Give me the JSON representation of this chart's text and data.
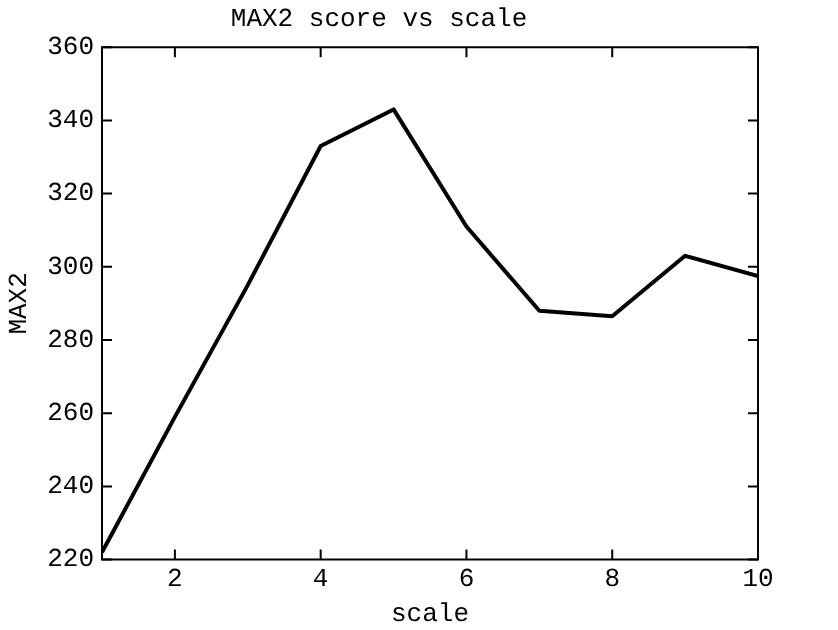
{
  "chart_data": {
    "type": "line",
    "title": "MAX2 score vs scale",
    "xlabel": "scale",
    "ylabel": "MAX2",
    "x": [
      1,
      2,
      3,
      4,
      5,
      6,
      7,
      8,
      9,
      10
    ],
    "series": [
      {
        "color": "#000000",
        "values": [
          222,
          259,
          295,
          333,
          343,
          311,
          288,
          286.5,
          303,
          297.5
        ]
      }
    ],
    "xlim": [
      1,
      10
    ],
    "xticks": [
      2,
      4,
      6,
      8,
      10
    ],
    "ylim": [
      220,
      360
    ],
    "yticks": [
      220,
      240,
      260,
      280,
      300,
      320,
      340,
      360
    ],
    "grid": false,
    "legend": false,
    "marker": "none",
    "line_style": "solid"
  }
}
